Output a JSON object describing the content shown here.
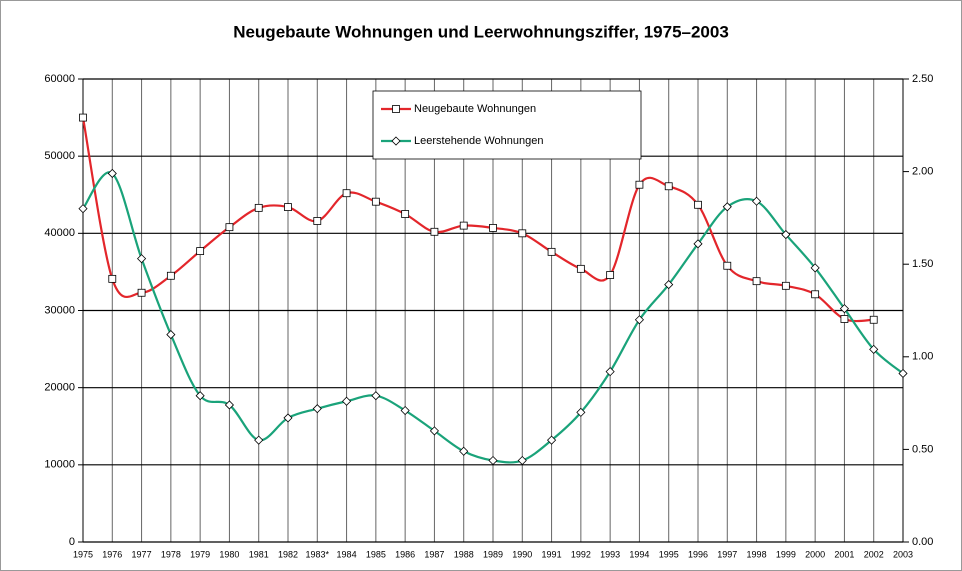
{
  "chart_data": {
    "type": "line",
    "title": "Neugebaute Wohnungen und Leerwohnungsziffer, 1975–2003",
    "categories": [
      "1975",
      "1976",
      "1977",
      "1978",
      "1979",
      "1980",
      "1981",
      "1982",
      "1983*",
      "1984",
      "1985",
      "1986",
      "1987",
      "1988",
      "1989",
      "1990",
      "1991",
      "1992",
      "1993",
      "1994",
      "1995",
      "1996",
      "1997",
      "1998",
      "1999",
      "2000",
      "2001",
      "2002",
      "2003"
    ],
    "series": [
      {
        "name": "Neugebaute Wohnungen",
        "color": "#e3262b",
        "marker": "square",
        "values": [
          55000,
          34100,
          32300,
          34500,
          37700,
          40800,
          43300,
          43400,
          41600,
          45200,
          44100,
          42500,
          40200,
          41000,
          40700,
          40000,
          37600,
          35400,
          34600,
          46300,
          46100,
          43700,
          35800,
          33800,
          33200,
          32100,
          28900,
          28800,
          null
        ]
      },
      {
        "name": "Leerstehende Wohnungen",
        "color": "#1aa37a",
        "marker": "diamond",
        "axis": "y2",
        "values": [
          1.8,
          1.99,
          1.53,
          1.12,
          0.79,
          0.74,
          0.55,
          0.67,
          0.72,
          0.76,
          0.79,
          0.71,
          0.6,
          0.49,
          0.44,
          0.44,
          0.55,
          0.7,
          0.92,
          1.2,
          1.39,
          1.61,
          1.81,
          1.84,
          1.66,
          1.48,
          1.26,
          1.04,
          0.91
        ]
      }
    ],
    "ylim": [
      0,
      60000
    ],
    "yticks": [
      0,
      10000,
      20000,
      30000,
      40000,
      50000,
      60000
    ],
    "y2lim": [
      0,
      2.5
    ],
    "y2ticks": [
      {
        "value": 0,
        "label": "0.00"
      },
      {
        "value": 0.5,
        "label": "0.50"
      },
      {
        "value": 1,
        "label": "1.00"
      },
      {
        "value": 1.5,
        "label": "1.50"
      },
      {
        "value": 2,
        "label": "2.00"
      },
      {
        "value": 2.5,
        "label": "2.50"
      }
    ],
    "grid": true
  }
}
